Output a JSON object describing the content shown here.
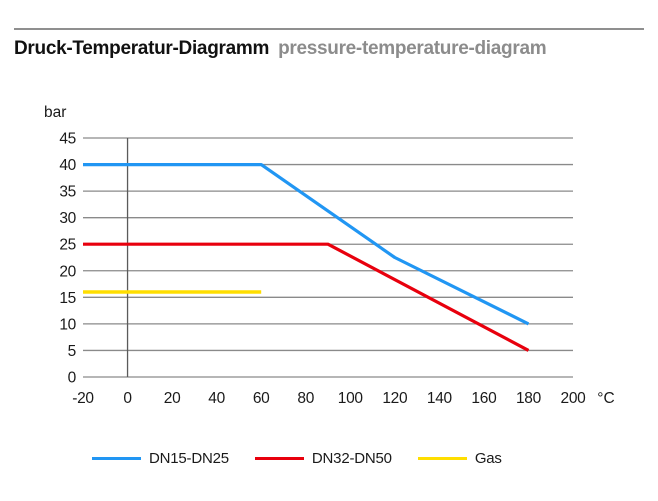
{
  "header": {
    "title_de": "Druck-Temperatur-Diagramm",
    "title_en": "pressure-temperature-diagram",
    "rule_color": "#8f8f8f"
  },
  "chart_data": {
    "type": "line",
    "title": "Druck-Temperatur-Diagramm / pressure-temperature-diagram",
    "xlabel": "°C",
    "ylabel": "bar",
    "xlim": [
      -20,
      200
    ],
    "ylim": [
      0,
      45
    ],
    "x_ticks": [
      -20,
      0,
      20,
      40,
      60,
      80,
      100,
      120,
      140,
      160,
      180,
      200
    ],
    "y_ticks": [
      0,
      5,
      10,
      15,
      20,
      25,
      30,
      35,
      40,
      45
    ],
    "grid": "horizontal",
    "zero_reference_line_x": 0,
    "legend_position": "bottom",
    "series": [
      {
        "name": "DN15-DN25",
        "color": "#2196F3",
        "points": [
          [
            -20,
            40
          ],
          [
            60,
            40
          ],
          [
            120,
            22.5
          ],
          [
            180,
            10
          ]
        ]
      },
      {
        "name": "DN32-DN50",
        "color": "#E8000D",
        "points": [
          [
            -20,
            25
          ],
          [
            90,
            25
          ],
          [
            180,
            5
          ]
        ]
      },
      {
        "name": "Gas",
        "color": "#FFDE00",
        "points": [
          [
            -20,
            16
          ],
          [
            60,
            16
          ]
        ]
      }
    ],
    "colors": {
      "grid": "#8a8a8a",
      "zero_line": "#5a5a5a",
      "tick_text": "#1a1a1a"
    }
  }
}
